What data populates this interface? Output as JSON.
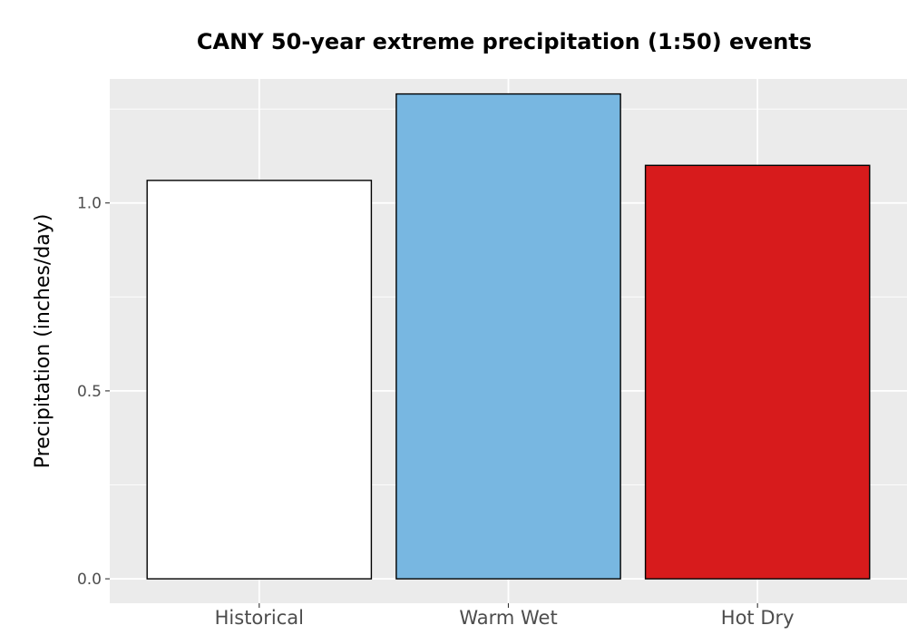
{
  "chart_data": {
    "type": "bar",
    "title": "CANY 50-year extreme precipitation (1:50) events",
    "xlabel": "",
    "ylabel": "Precipitation (inches/day)",
    "categories": [
      "Historical",
      "Warm Wet",
      "Hot Dry"
    ],
    "values": [
      1.06,
      1.29,
      1.1
    ],
    "bar_colors": [
      "#ffffff",
      "#78b7e1",
      "#d71b1c"
    ],
    "bar_outline": "#000000",
    "ylim": [
      -0.065,
      1.33
    ],
    "yticks": [
      0.0,
      0.5,
      1.0
    ],
    "ytick_labels": [
      "0.0",
      "0.5",
      "1.0"
    ],
    "grid": true,
    "panel_background": "#ebebeb",
    "legend": "none"
  }
}
